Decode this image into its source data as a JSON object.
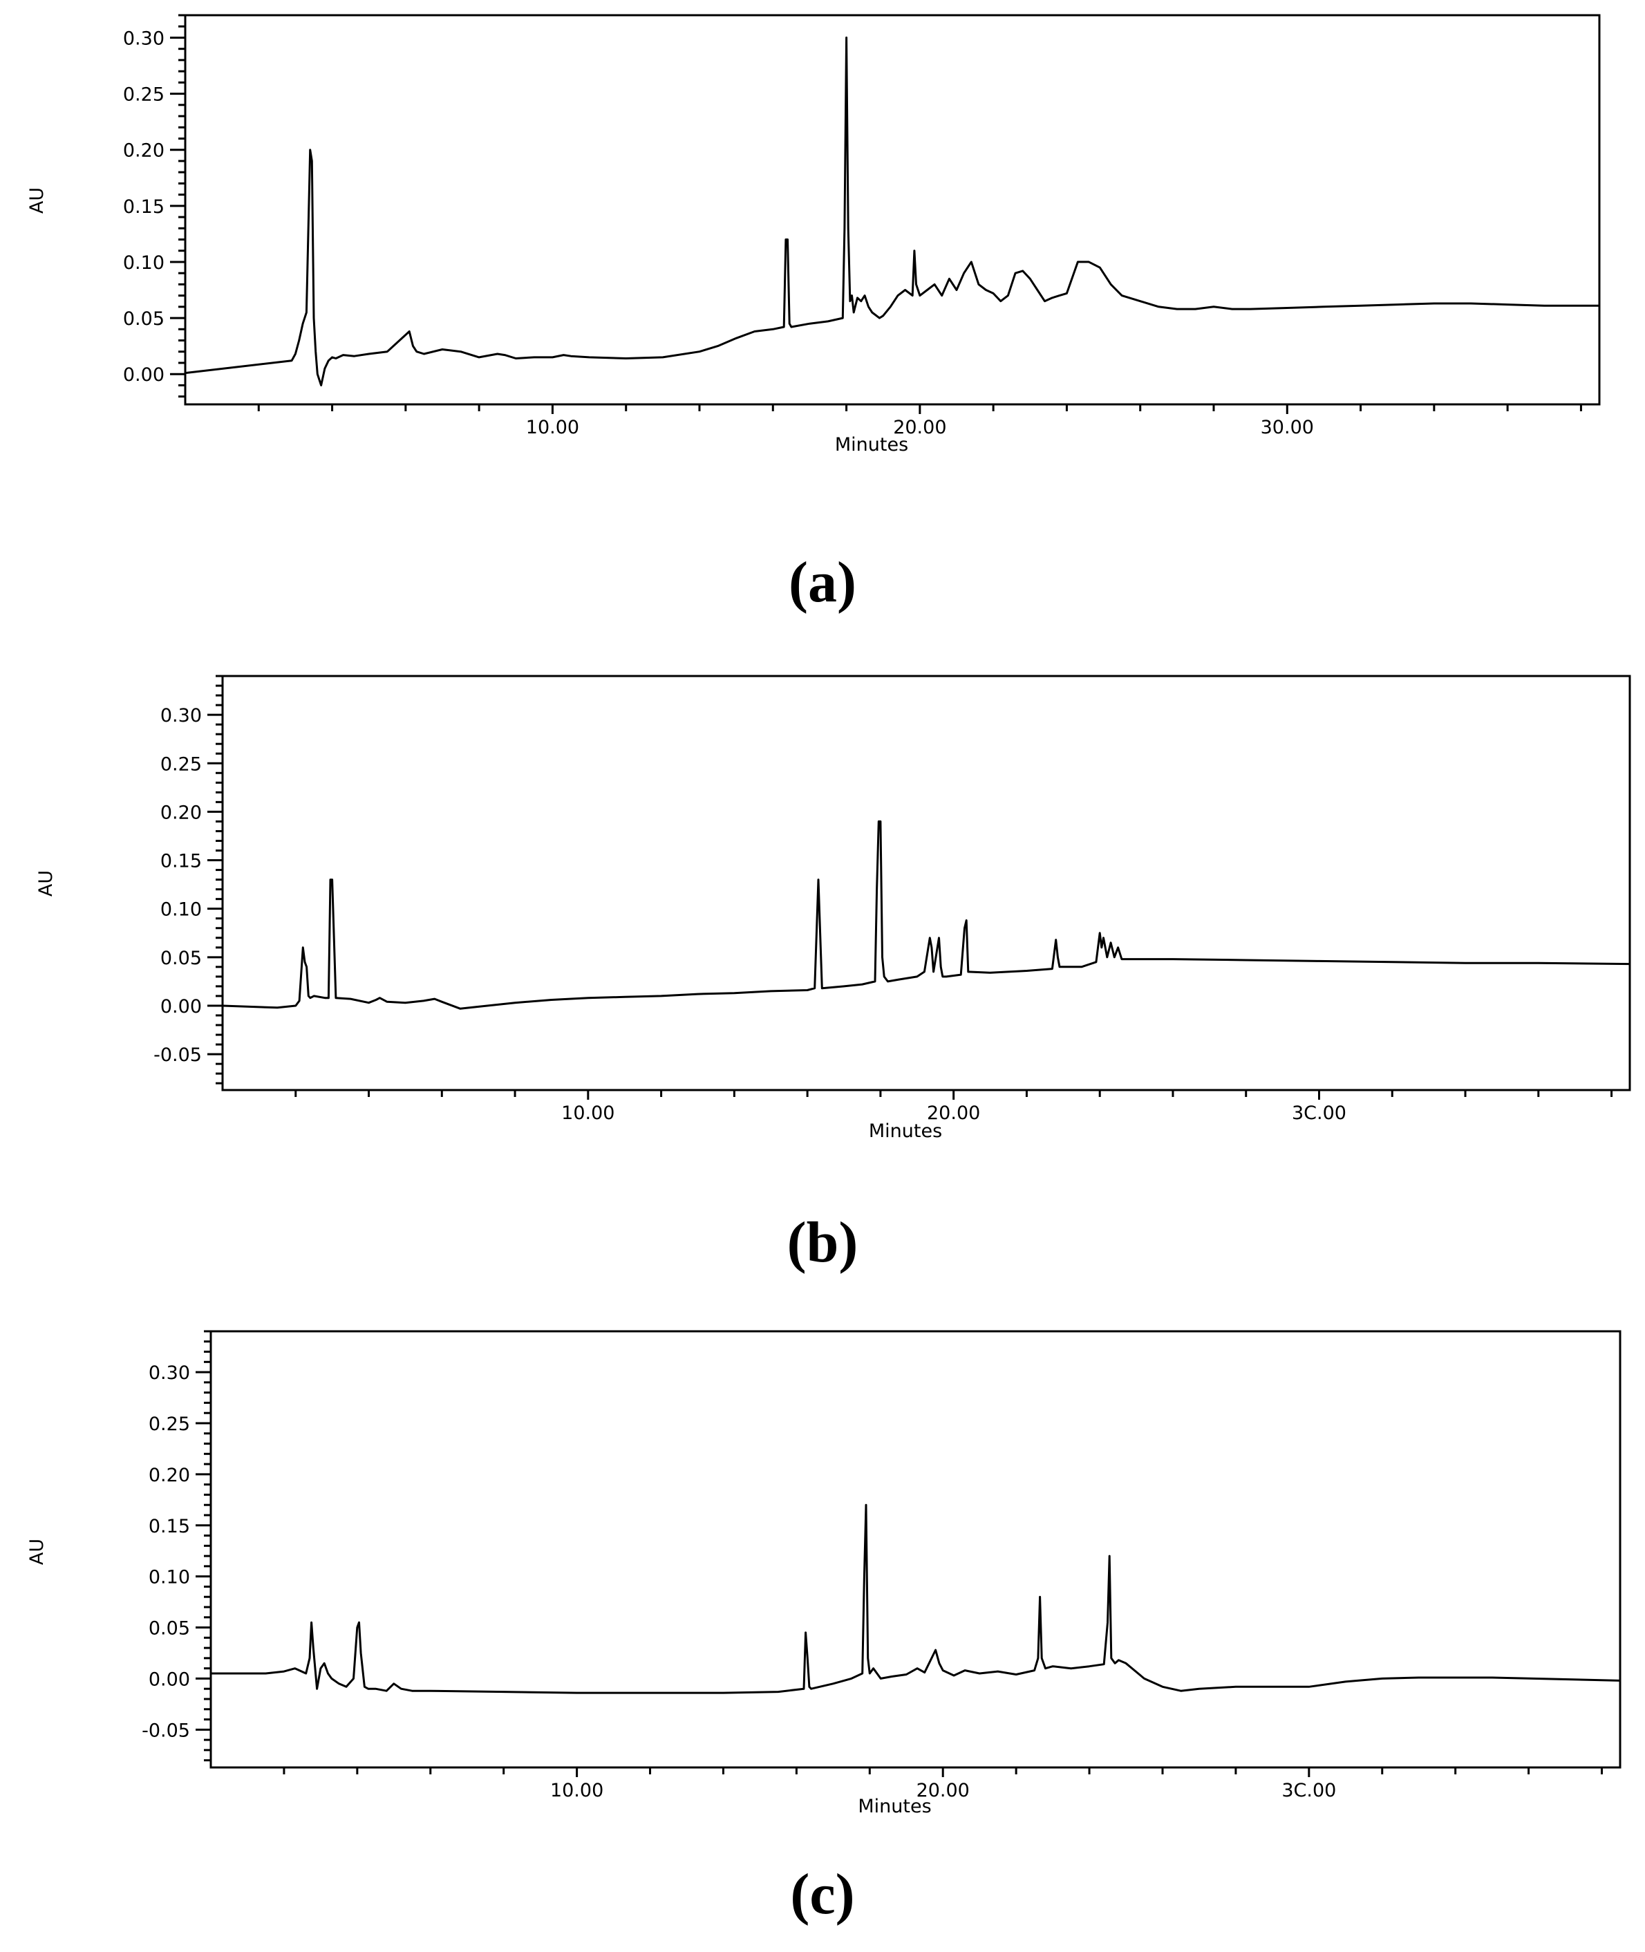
{
  "chart_data": [
    {
      "type": "line",
      "panel_label": "(a)",
      "xlabel": "Minutes",
      "ylabel": "AU",
      "xlim": [
        0,
        38.5
      ],
      "ylim": [
        -0.027,
        0.32
      ],
      "yticks": [
        "0.00",
        "0.05",
        "0.10",
        "0.15",
        "0.20",
        "0.25",
        "0.30"
      ],
      "yticks_values": [
        0,
        0.05,
        0.1,
        0.15,
        0.2,
        0.25,
        0.3
      ],
      "xticks": [
        "10.00",
        "20.00",
        "30.00"
      ],
      "xticks_values": [
        10,
        20,
        30
      ],
      "series": [
        {
          "x": [
            0,
            2.9,
            3.0,
            3.1,
            3.2,
            3.3,
            3.4,
            3.45,
            3.5,
            3.55,
            3.6,
            3.7,
            3.8,
            3.9,
            4.0,
            4.1,
            4.3,
            4.6,
            5.0,
            5.5,
            6.0,
            6.1,
            6.2,
            6.3,
            6.5,
            7.0,
            7.5,
            8.0,
            8.5,
            8.7,
            9.0,
            9.5,
            10.0,
            10.3,
            10.5,
            11.0,
            12.0,
            13.0,
            14.0,
            14.5,
            15.0,
            15.5,
            16.0,
            16.3,
            16.35,
            16.4,
            16.45,
            16.5,
            17.0,
            17.5,
            17.9,
            17.95,
            18.0,
            18.05,
            18.1,
            18.15,
            18.2,
            18.3,
            18.4,
            18.5,
            18.6,
            18.7,
            18.9,
            19.0,
            19.2,
            19.4,
            19.6,
            19.8,
            19.85,
            19.9,
            20.0,
            20.2,
            20.4,
            20.6,
            20.8,
            21.0,
            21.2,
            21.4,
            21.6,
            21.8,
            22.0,
            22.2,
            22.4,
            22.6,
            22.8,
            23.0,
            23.2,
            23.4,
            23.6,
            23.8,
            24.0,
            24.3,
            24.6,
            24.9,
            25.2,
            25.5,
            26.0,
            26.5,
            27.0,
            27.5,
            28.0,
            28.5,
            29.0,
            30.0,
            31.0,
            32.0,
            33.0,
            34.0,
            35.0,
            36.0,
            37.0,
            38.5
          ],
          "y": [
            0.001,
            0.012,
            0.018,
            0.03,
            0.045,
            0.055,
            0.2,
            0.19,
            0.05,
            0.02,
            0.0,
            -0.01,
            0.005,
            0.012,
            0.015,
            0.014,
            0.017,
            0.016,
            0.018,
            0.02,
            0.035,
            0.038,
            0.025,
            0.02,
            0.018,
            0.022,
            0.02,
            0.015,
            0.018,
            0.017,
            0.014,
            0.015,
            0.015,
            0.017,
            0.016,
            0.015,
            0.014,
            0.015,
            0.02,
            0.025,
            0.032,
            0.038,
            0.04,
            0.042,
            0.12,
            0.12,
            0.045,
            0.042,
            0.045,
            0.047,
            0.05,
            0.13,
            0.3,
            0.13,
            0.065,
            0.07,
            0.055,
            0.068,
            0.065,
            0.07,
            0.06,
            0.055,
            0.05,
            0.052,
            0.06,
            0.07,
            0.075,
            0.07,
            0.11,
            0.08,
            0.07,
            0.075,
            0.08,
            0.07,
            0.085,
            0.075,
            0.09,
            0.1,
            0.08,
            0.075,
            0.072,
            0.065,
            0.07,
            0.09,
            0.092,
            0.085,
            0.075,
            0.065,
            0.068,
            0.07,
            0.072,
            0.1,
            0.1,
            0.095,
            0.08,
            0.07,
            0.065,
            0.06,
            0.058,
            0.058,
            0.06,
            0.058,
            0.058,
            0.059,
            0.06,
            0.061,
            0.062,
            0.063,
            0.063,
            0.062,
            0.061,
            0.061
          ]
        }
      ]
    },
    {
      "type": "line",
      "panel_label": "(b)",
      "xlabel": "Minutes",
      "ylabel": "AU",
      "xlim": [
        0,
        38.5
      ],
      "ylim": [
        -0.087,
        0.34
      ],
      "yticks": [
        "-0.05",
        "0.00",
        "0.05",
        "0.10",
        "0.15",
        "0.20",
        "0.25",
        "0.30"
      ],
      "yticks_values": [
        -0.05,
        0,
        0.05,
        0.1,
        0.15,
        0.2,
        0.25,
        0.3
      ],
      "xticks": [
        "10.00",
        "20.00",
        "3C.00"
      ],
      "xticks_values": [
        10,
        20,
        30
      ],
      "series": [
        {
          "x": [
            0,
            1.5,
            2.0,
            2.1,
            2.2,
            2.25,
            2.3,
            2.35,
            2.4,
            2.5,
            2.8,
            2.9,
            2.95,
            3.0,
            3.1,
            3.5,
            4.0,
            4.2,
            4.3,
            4.5,
            5.0,
            5.5,
            5.8,
            6.0,
            6.5,
            7.0,
            8.0,
            9.0,
            10.0,
            11.0,
            12.0,
            13.0,
            14.0,
            15.0,
            16.0,
            16.2,
            16.25,
            16.3,
            16.35,
            16.4,
            17.0,
            17.5,
            17.85,
            17.9,
            17.95,
            18.0,
            18.05,
            18.1,
            18.2,
            18.5,
            19.0,
            19.2,
            19.35,
            19.4,
            19.45,
            19.6,
            19.65,
            19.7,
            19.8,
            20.0,
            20.2,
            20.3,
            20.35,
            20.4,
            21.0,
            22.0,
            22.7,
            22.8,
            22.85,
            22.9,
            23.5,
            23.9,
            24.0,
            24.05,
            24.1,
            24.2,
            24.3,
            24.4,
            24.5,
            24.6,
            25.0,
            26.0,
            28.0,
            30.0,
            32.0,
            34.0,
            36.0,
            38.5
          ],
          "y": [
            0.0,
            -0.002,
            0.0,
            0.005,
            0.06,
            0.045,
            0.04,
            0.01,
            0.008,
            0.01,
            0.008,
            0.008,
            0.13,
            0.13,
            0.008,
            0.007,
            0.003,
            0.006,
            0.008,
            0.004,
            0.003,
            0.005,
            0.007,
            0.004,
            -0.003,
            -0.001,
            0.003,
            0.006,
            0.008,
            0.009,
            0.01,
            0.012,
            0.013,
            0.015,
            0.016,
            0.018,
            0.075,
            0.13,
            0.075,
            0.018,
            0.02,
            0.022,
            0.025,
            0.12,
            0.19,
            0.19,
            0.05,
            0.03,
            0.025,
            0.027,
            0.03,
            0.035,
            0.07,
            0.06,
            0.035,
            0.07,
            0.04,
            0.03,
            0.03,
            0.031,
            0.032,
            0.08,
            0.088,
            0.035,
            0.034,
            0.036,
            0.038,
            0.068,
            0.05,
            0.04,
            0.04,
            0.045,
            0.075,
            0.06,
            0.07,
            0.05,
            0.065,
            0.05,
            0.06,
            0.048,
            0.048,
            0.048,
            0.047,
            0.046,
            0.045,
            0.044,
            0.044,
            0.043
          ]
        }
      ]
    },
    {
      "type": "line",
      "panel_label": "(c)",
      "xlabel": "Minutes",
      "ylabel": "AU",
      "xlim": [
        0,
        38.5
      ],
      "ylim": [
        -0.087,
        0.34
      ],
      "yticks": [
        "-0.05",
        "0.00",
        "0.05",
        "0.10",
        "0.15",
        "0.20",
        "0.25",
        "0.30"
      ],
      "yticks_values": [
        -0.05,
        0,
        0.05,
        0.1,
        0.15,
        0.2,
        0.25,
        0.3
      ],
      "xticks": [
        "10.00",
        "20.00",
        "3C.00"
      ],
      "xticks_values": [
        10,
        20,
        30
      ],
      "series": [
        {
          "x": [
            0,
            1.5,
            2.0,
            2.3,
            2.6,
            2.7,
            2.75,
            2.8,
            2.9,
            3.0,
            3.1,
            3.2,
            3.3,
            3.5,
            3.7,
            3.9,
            4.0,
            4.05,
            4.1,
            4.2,
            4.3,
            4.5,
            4.8,
            5.0,
            5.2,
            5.5,
            6.0,
            8.0,
            10.0,
            12.0,
            14.0,
            15.5,
            16.2,
            16.25,
            16.3,
            16.35,
            16.4,
            17.0,
            17.5,
            17.8,
            17.85,
            17.9,
            17.95,
            18.0,
            18.1,
            18.3,
            18.6,
            19.0,
            19.3,
            19.5,
            19.8,
            19.9,
            20.0,
            20.3,
            20.6,
            21.0,
            21.5,
            22.0,
            22.5,
            22.6,
            22.65,
            22.7,
            22.8,
            23.0,
            23.5,
            24.0,
            24.4,
            24.5,
            24.55,
            24.6,
            24.7,
            24.8,
            25.0,
            25.5,
            26.0,
            26.5,
            27.0,
            28.0,
            29.0,
            30.0,
            31.0,
            32.0,
            33.0,
            35.0,
            38.5
          ],
          "y": [
            0.005,
            0.005,
            0.007,
            0.01,
            0.005,
            0.02,
            0.055,
            0.03,
            -0.01,
            0.01,
            0.015,
            0.005,
            0.0,
            -0.005,
            -0.008,
            0.0,
            0.05,
            0.055,
            0.025,
            -0.008,
            -0.01,
            -0.01,
            -0.012,
            -0.005,
            -0.01,
            -0.012,
            -0.012,
            -0.013,
            -0.014,
            -0.014,
            -0.014,
            -0.013,
            -0.01,
            0.045,
            0.02,
            -0.008,
            -0.01,
            -0.005,
            0.0,
            0.005,
            0.1,
            0.17,
            0.02,
            0.005,
            0.01,
            0.0,
            0.002,
            0.004,
            0.01,
            0.006,
            0.028,
            0.015,
            0.008,
            0.003,
            0.008,
            0.005,
            0.007,
            0.004,
            0.008,
            0.02,
            0.08,
            0.02,
            0.01,
            0.012,
            0.01,
            0.012,
            0.014,
            0.055,
            0.12,
            0.02,
            0.015,
            0.018,
            0.015,
            0.0,
            -0.008,
            -0.012,
            -0.01,
            -0.008,
            -0.008,
            -0.008,
            -0.003,
            0.0,
            0.001,
            0.001,
            -0.002
          ]
        }
      ]
    }
  ]
}
